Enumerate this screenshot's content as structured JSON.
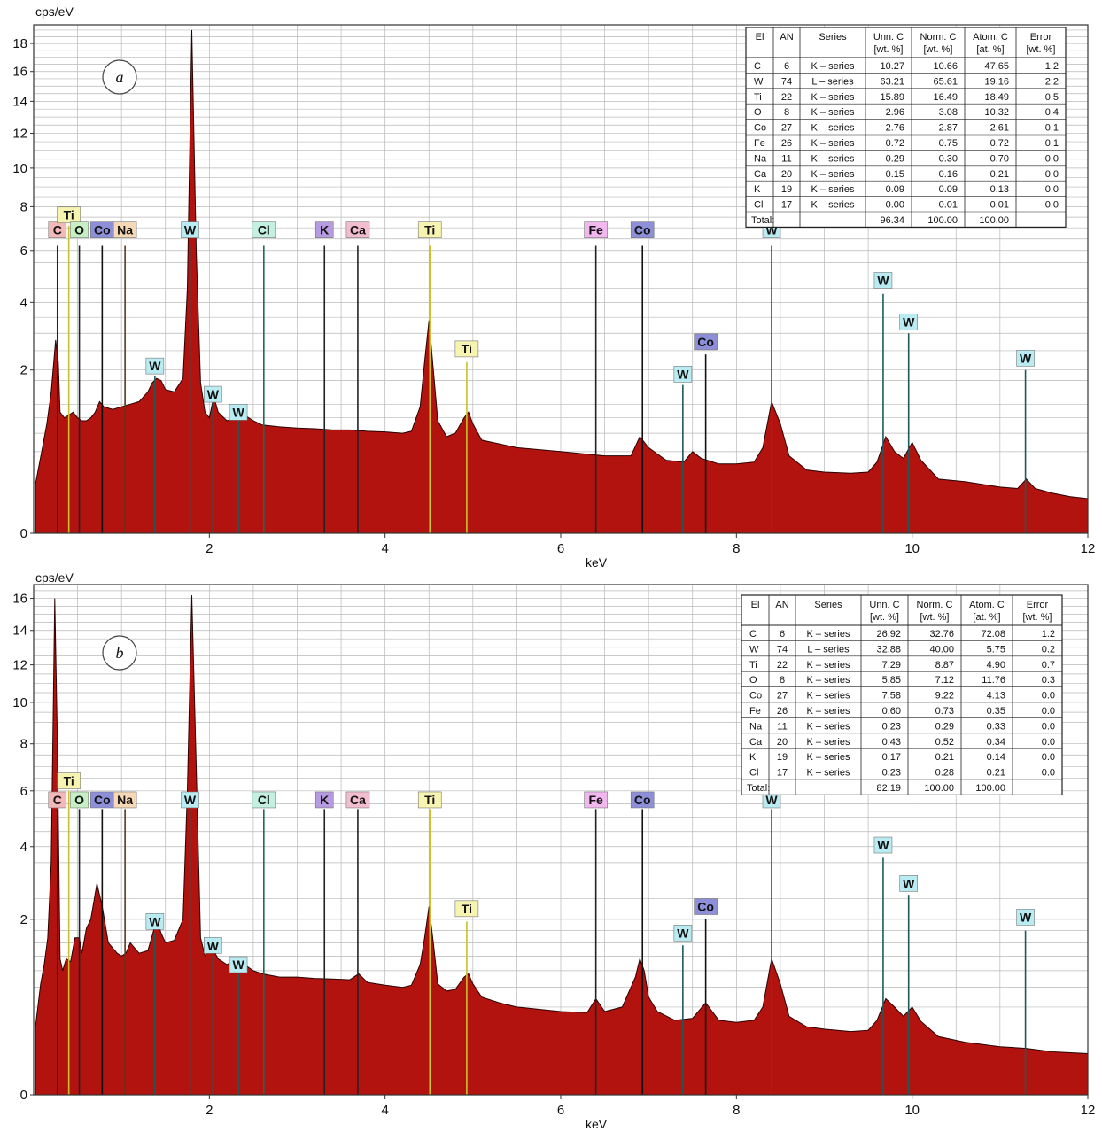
{
  "colors": {
    "fill": "#b3130f",
    "outline": "#2a0000",
    "grid": "#b8b8b8",
    "label_bg": {
      "C": "#f3b9b9",
      "Ti": "#f7f3b0",
      "O": "#c6efc4",
      "Co": "#8d8fd8",
      "Na": "#f6d7b6",
      "W": "#b9ecf2",
      "Cl": "#c4f0e2",
      "K": "#b79be0",
      "Ca": "#f3bdd0",
      "Fe": "#f2b7ee"
    },
    "line": {
      "C": "#222222",
      "Ti": "#c9c12d",
      "O": "#222222",
      "Co": "#111111",
      "Na": "#5a3a1a",
      "W": "#1d5a5a",
      "Cl": "#1d6a55",
      "K": "#222222",
      "Ca": "#222222",
      "Fe": "#222222"
    }
  },
  "chart_data": [
    {
      "type": "area",
      "panel": "a",
      "ylabel": "cps/eV",
      "xlabel": "keV",
      "xlim": [
        0.0,
        12.0
      ],
      "y_ticks": [
        0,
        2,
        4,
        6,
        8,
        10,
        12,
        14,
        16,
        18
      ],
      "x_ticks": [
        2,
        4,
        6,
        8,
        10,
        12
      ],
      "scale": "sqrt",
      "grid": true,
      "spectrum": {
        "x": [
          0.02,
          0.1,
          0.15,
          0.2,
          0.25,
          0.28,
          0.3,
          0.35,
          0.4,
          0.45,
          0.5,
          0.55,
          0.6,
          0.65,
          0.7,
          0.75,
          0.8,
          0.9,
          1.0,
          1.1,
          1.2,
          1.3,
          1.35,
          1.4,
          1.45,
          1.5,
          1.6,
          1.7,
          1.75,
          1.8,
          1.85,
          1.9,
          1.95,
          2.0,
          2.05,
          2.1,
          2.2,
          2.3,
          2.35,
          2.4,
          2.5,
          2.6,
          2.8,
          3.0,
          3.2,
          3.4,
          3.6,
          3.8,
          4.0,
          4.2,
          4.3,
          4.4,
          4.45,
          4.5,
          4.55,
          4.6,
          4.7,
          4.8,
          4.9,
          4.95,
          5.0,
          5.1,
          5.3,
          5.5,
          6.0,
          6.5,
          6.8,
          6.9,
          7.0,
          7.2,
          7.4,
          7.5,
          7.6,
          7.8,
          8.0,
          8.2,
          8.3,
          8.4,
          8.5,
          8.6,
          8.8,
          9.0,
          9.3,
          9.5,
          9.6,
          9.7,
          9.8,
          9.9,
          10.0,
          10.1,
          10.3,
          10.6,
          11.0,
          11.2,
          11.3,
          11.4,
          11.6,
          11.8,
          12.0
        ],
        "y": [
          0.18,
          0.55,
          0.9,
          1.5,
          2.8,
          2.2,
          1.1,
          1.0,
          1.05,
          1.1,
          1.0,
          0.95,
          0.95,
          1.0,
          1.1,
          1.3,
          1.2,
          1.15,
          1.2,
          1.25,
          1.3,
          1.5,
          1.7,
          1.8,
          1.75,
          1.55,
          1.5,
          1.8,
          4.5,
          19.0,
          6.0,
          1.7,
          1.1,
          1.0,
          1.4,
          1.1,
          0.95,
          1.0,
          1.15,
          1.05,
          0.95,
          0.88,
          0.85,
          0.83,
          0.82,
          0.8,
          0.8,
          0.78,
          0.77,
          0.75,
          0.78,
          1.2,
          2.2,
          3.4,
          2.0,
          0.95,
          0.7,
          0.75,
          1.0,
          1.1,
          0.9,
          0.65,
          0.6,
          0.55,
          0.5,
          0.45,
          0.45,
          0.7,
          0.55,
          0.4,
          0.38,
          0.5,
          0.42,
          0.36,
          0.36,
          0.38,
          0.55,
          1.3,
          0.9,
          0.45,
          0.3,
          0.28,
          0.27,
          0.28,
          0.38,
          0.7,
          0.5,
          0.42,
          0.62,
          0.4,
          0.22,
          0.2,
          0.16,
          0.15,
          0.22,
          0.15,
          0.12,
          0.1,
          0.09
        ]
      },
      "peak_labels": [
        {
          "el": "C",
          "x": 0.27,
          "line_top": 6.2,
          "label_y": 6.9
        },
        {
          "el": "Ti",
          "x": 0.4,
          "line_top": 7.1,
          "label_y": 7.6
        },
        {
          "el": "O",
          "x": 0.52,
          "line_top": 6.2,
          "label_y": 6.9
        },
        {
          "el": "Co",
          "x": 0.78,
          "line_top": 6.2,
          "label_y": 6.9
        },
        {
          "el": "Na",
          "x": 1.04,
          "line_top": 6.2,
          "label_y": 6.9
        },
        {
          "el": "W",
          "x": 1.78,
          "line_top": 6.2,
          "label_y": 6.9
        },
        {
          "el": "Cl",
          "x": 2.62,
          "line_top": 6.2,
          "label_y": 6.9
        },
        {
          "el": "K",
          "x": 3.31,
          "line_top": 6.2,
          "label_y": 6.9
        },
        {
          "el": "Ca",
          "x": 3.69,
          "line_top": 6.2,
          "label_y": 6.9
        },
        {
          "el": "Ti",
          "x": 4.51,
          "line_top": 6.2,
          "label_y": 6.9
        },
        {
          "el": "Fe",
          "x": 6.4,
          "line_top": 6.2,
          "label_y": 6.9
        },
        {
          "el": "Co",
          "x": 6.93,
          "line_top": 6.2,
          "label_y": 6.9
        },
        {
          "el": "W",
          "x": 8.4,
          "line_top": 6.2,
          "label_y": 6.9
        },
        {
          "el": "W",
          "x": 1.38,
          "line_top": 1.85,
          "label_y": 2.1
        },
        {
          "el": "W",
          "x": 2.04,
          "line_top": 1.25,
          "label_y": 1.45
        },
        {
          "el": "W",
          "x": 2.33,
          "line_top": 0.95,
          "label_y": 1.1
        },
        {
          "el": "Ti",
          "x": 4.93,
          "line_top": 2.2,
          "label_y": 2.55
        },
        {
          "el": "W",
          "x": 7.39,
          "line_top": 1.65,
          "label_y": 1.9
        },
        {
          "el": "Co",
          "x": 7.65,
          "line_top": 2.4,
          "label_y": 2.75
        },
        {
          "el": "W",
          "x": 9.67,
          "line_top": 4.3,
          "label_y": 4.8
        },
        {
          "el": "W",
          "x": 9.96,
          "line_top": 3.0,
          "label_y": 3.35
        },
        {
          "el": "W",
          "x": 11.29,
          "line_top": 2.0,
          "label_y": 2.3
        }
      ],
      "table": {
        "headers": [
          [
            "El",
            ""
          ],
          [
            "AN",
            ""
          ],
          [
            "Series",
            ""
          ],
          [
            "Unn. C",
            "[wt. %]"
          ],
          [
            "Norm. C",
            "[wt. %]"
          ],
          [
            "Atom. C",
            "[at. %]"
          ],
          [
            "Error",
            "[wt. %]"
          ]
        ],
        "rows": [
          [
            "C",
            "6",
            "K – series",
            "10.27",
            "10.66",
            "47.65",
            "1.2"
          ],
          [
            "W",
            "74",
            "L – series",
            "63.21",
            "65.61",
            "19.16",
            "2.2"
          ],
          [
            "Ti",
            "22",
            "K – series",
            "15.89",
            "16.49",
            "18.49",
            "0.5"
          ],
          [
            "O",
            "8",
            "K – series",
            "2.96",
            "3.08",
            "10.32",
            "0.4"
          ],
          [
            "Co",
            "27",
            "K – series",
            "2.76",
            "2.87",
            "2.61",
            "0.1"
          ],
          [
            "Fe",
            "26",
            "K – series",
            "0.72",
            "0.75",
            "0.72",
            "0.1"
          ],
          [
            "Na",
            "11",
            "K – series",
            "0.29",
            "0.30",
            "0.70",
            "0.0"
          ],
          [
            "Ca",
            "20",
            "K – series",
            "0.15",
            "0.16",
            "0.21",
            "0.0"
          ],
          [
            "K",
            "19",
            "K – series",
            "0.09",
            "0.09",
            "0.13",
            "0.0"
          ],
          [
            "Cl",
            "17",
            "K – series",
            "0.00",
            "0.01",
            "0.01",
            "0.0"
          ]
        ],
        "total": [
          "Total:",
          "",
          "",
          "96.34",
          "100.00",
          "100.00",
          ""
        ]
      }
    },
    {
      "type": "area",
      "panel": "b",
      "ylabel": "cps/eV",
      "xlabel": "keV",
      "xlim": [
        0.0,
        12.0
      ],
      "y_ticks": [
        0,
        2,
        4,
        6,
        8,
        10,
        12,
        14,
        16
      ],
      "x_ticks": [
        2,
        4,
        6,
        8,
        10,
        12
      ],
      "scale": "sqrt",
      "grid": true,
      "spectrum": {
        "x": [
          0.02,
          0.08,
          0.12,
          0.16,
          0.2,
          0.24,
          0.27,
          0.3,
          0.33,
          0.37,
          0.42,
          0.47,
          0.52,
          0.55,
          0.6,
          0.65,
          0.72,
          0.78,
          0.85,
          0.95,
          1.0,
          1.05,
          1.1,
          1.2,
          1.3,
          1.35,
          1.4,
          1.45,
          1.5,
          1.6,
          1.7,
          1.75,
          1.8,
          1.85,
          1.9,
          1.95,
          2.0,
          2.05,
          2.1,
          2.2,
          2.3,
          2.4,
          2.5,
          2.6,
          2.8,
          3.0,
          3.2,
          3.4,
          3.6,
          3.7,
          3.8,
          4.0,
          4.2,
          4.3,
          4.4,
          4.45,
          4.5,
          4.55,
          4.6,
          4.7,
          4.8,
          4.9,
          4.95,
          5.0,
          5.1,
          5.3,
          5.5,
          6.0,
          6.3,
          6.4,
          6.5,
          6.7,
          6.85,
          6.9,
          6.95,
          7.0,
          7.1,
          7.3,
          7.5,
          7.65,
          7.8,
          8.0,
          8.2,
          8.3,
          8.4,
          8.5,
          8.6,
          8.8,
          9.0,
          9.3,
          9.5,
          9.6,
          9.7,
          9.8,
          9.9,
          10.0,
          10.1,
          10.3,
          10.6,
          11.0,
          11.3,
          11.6,
          12.0
        ],
        "y": [
          0.3,
          0.8,
          1.1,
          1.6,
          3.5,
          16.0,
          8.0,
          1.2,
          1.0,
          1.2,
          1.15,
          1.6,
          1.6,
          1.3,
          1.8,
          2.0,
          2.9,
          2.3,
          1.5,
          1.3,
          1.25,
          1.3,
          1.5,
          1.3,
          1.35,
          1.65,
          2.0,
          1.7,
          1.5,
          1.55,
          2.0,
          6.0,
          16.2,
          7.0,
          1.6,
          1.25,
          1.4,
          1.35,
          1.2,
          1.1,
          1.2,
          1.1,
          1.0,
          0.95,
          0.9,
          0.9,
          0.88,
          0.87,
          0.86,
          0.95,
          0.82,
          0.78,
          0.75,
          0.78,
          1.1,
          1.6,
          2.3,
          1.5,
          0.8,
          0.7,
          0.72,
          0.9,
          0.95,
          0.8,
          0.62,
          0.55,
          0.5,
          0.45,
          0.44,
          0.6,
          0.45,
          0.5,
          0.9,
          1.2,
          1.0,
          0.62,
          0.45,
          0.36,
          0.38,
          0.55,
          0.36,
          0.34,
          0.36,
          0.5,
          1.2,
          0.8,
          0.4,
          0.3,
          0.28,
          0.26,
          0.27,
          0.36,
          0.6,
          0.5,
          0.4,
          0.5,
          0.35,
          0.22,
          0.18,
          0.15,
          0.14,
          0.12,
          0.11
        ]
      },
      "peak_labels": [
        {
          "el": "C",
          "x": 0.27,
          "line_top": 5.3,
          "label_y": 5.65
        },
        {
          "el": "Ti",
          "x": 0.4,
          "line_top": 6.0,
          "label_y": 6.4
        },
        {
          "el": "O",
          "x": 0.52,
          "line_top": 5.3,
          "label_y": 5.65
        },
        {
          "el": "Co",
          "x": 0.78,
          "line_top": 5.3,
          "label_y": 5.65
        },
        {
          "el": "Na",
          "x": 1.04,
          "line_top": 5.3,
          "label_y": 5.65
        },
        {
          "el": "W",
          "x": 1.78,
          "line_top": 5.3,
          "label_y": 5.65
        },
        {
          "el": "Cl",
          "x": 2.62,
          "line_top": 5.3,
          "label_y": 5.65
        },
        {
          "el": "K",
          "x": 3.31,
          "line_top": 5.3,
          "label_y": 5.65
        },
        {
          "el": "Ca",
          "x": 3.69,
          "line_top": 5.3,
          "label_y": 5.65
        },
        {
          "el": "Ti",
          "x": 4.51,
          "line_top": 5.3,
          "label_y": 5.65
        },
        {
          "el": "Fe",
          "x": 6.4,
          "line_top": 5.3,
          "label_y": 5.65
        },
        {
          "el": "Co",
          "x": 6.93,
          "line_top": 5.3,
          "label_y": 5.65
        },
        {
          "el": "W",
          "x": 8.4,
          "line_top": 5.3,
          "label_y": 5.65
        },
        {
          "el": "W",
          "x": 1.38,
          "line_top": 1.7,
          "label_y": 1.95
        },
        {
          "el": "W",
          "x": 2.04,
          "line_top": 1.25,
          "label_y": 1.45
        },
        {
          "el": "W",
          "x": 2.33,
          "line_top": 0.95,
          "label_y": 1.1
        },
        {
          "el": "Ti",
          "x": 4.93,
          "line_top": 1.95,
          "label_y": 2.25
        },
        {
          "el": "W",
          "x": 7.39,
          "line_top": 1.45,
          "label_y": 1.7
        },
        {
          "el": "Co",
          "x": 7.65,
          "line_top": 2.0,
          "label_y": 2.3
        },
        {
          "el": "W",
          "x": 9.67,
          "line_top": 3.65,
          "label_y": 4.05
        },
        {
          "el": "W",
          "x": 9.96,
          "line_top": 2.6,
          "label_y": 2.9
        },
        {
          "el": "W",
          "x": 11.29,
          "line_top": 1.75,
          "label_y": 2.05
        }
      ],
      "table": {
        "headers": [
          [
            "El",
            ""
          ],
          [
            "AN",
            ""
          ],
          [
            "Series",
            ""
          ],
          [
            "Unn. C",
            "[wt. %]"
          ],
          [
            "Norm. C",
            "[wt. %]"
          ],
          [
            "Atom. C",
            "[at. %]"
          ],
          [
            "Error",
            "[wt. %]"
          ]
        ],
        "rows": [
          [
            "C",
            "6",
            "K – series",
            "26.92",
            "32.76",
            "72.08",
            "1.2"
          ],
          [
            "W",
            "74",
            "L – series",
            "32.88",
            "40.00",
            "5.75",
            "0.2"
          ],
          [
            "Ti",
            "22",
            "K – series",
            "7.29",
            "8.87",
            "4.90",
            "0.7"
          ],
          [
            "O",
            "8",
            "K – series",
            "5.85",
            "7.12",
            "11.76",
            "0.3"
          ],
          [
            "Co",
            "27",
            "K – series",
            "7.58",
            "9.22",
            "4.13",
            "0.0"
          ],
          [
            "Fe",
            "26",
            "K – series",
            "0.60",
            "0.73",
            "0.35",
            "0.0"
          ],
          [
            "Na",
            "11",
            "K – series",
            "0.23",
            "0.29",
            "0.33",
            "0.0"
          ],
          [
            "Ca",
            "20",
            "K – series",
            "0.43",
            "0.52",
            "0.34",
            "0.0"
          ],
          [
            "K",
            "19",
            "K – series",
            "0.17",
            "0.21",
            "0.14",
            "0.0"
          ],
          [
            "Cl",
            "17",
            "K – series",
            "0.23",
            "0.28",
            "0.21",
            "0.0"
          ]
        ],
        "total": [
          "Total:",
          "",
          "",
          "82.19",
          "100.00",
          "100.00",
          ""
        ]
      }
    }
  ]
}
